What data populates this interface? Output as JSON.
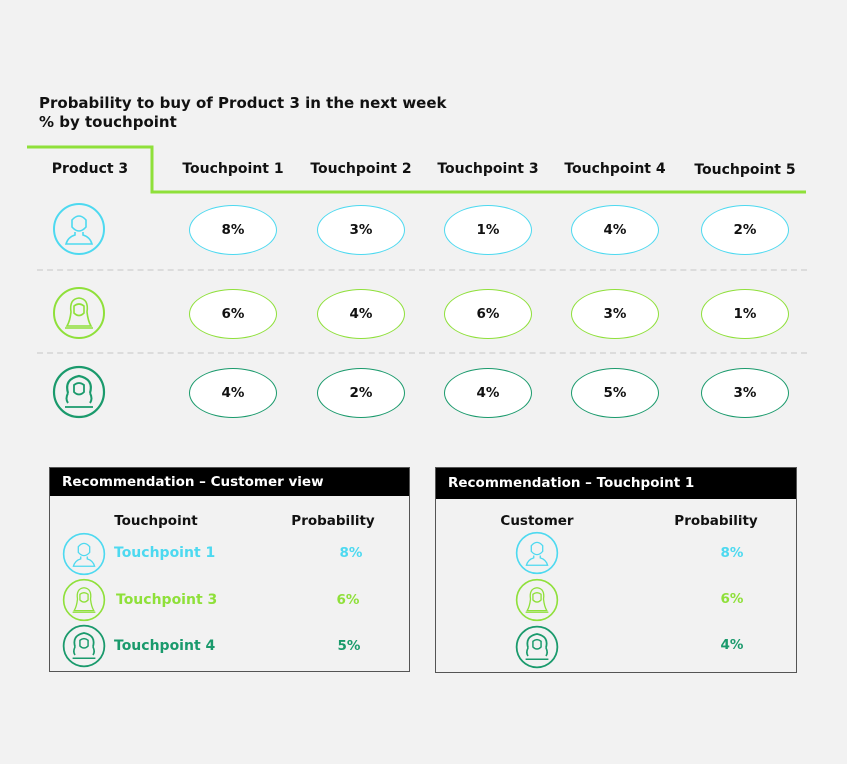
{
  "title": {
    "line1": "Probability to buy of Product 3 in the next week",
    "line2": "% by touchpoint"
  },
  "table": {
    "corner_label": "Product 3",
    "columns": [
      "Touchpoint 1",
      "Touchpoint 2",
      "Touchpoint 3",
      "Touchpoint 4",
      "Touchpoint 5"
    ],
    "rows": [
      {
        "icon": "customer-short-hair-icon",
        "color": "#4dd9f0",
        "values": [
          "8%",
          "3%",
          "1%",
          "4%",
          "2%"
        ]
      },
      {
        "icon": "customer-long-hair-icon",
        "color": "#8fe03a",
        "values": [
          "6%",
          "4%",
          "6%",
          "3%",
          "1%"
        ]
      },
      {
        "icon": "customer-curly-hair-icon",
        "color": "#1a9a6c",
        "values": [
          "4%",
          "2%",
          "4%",
          "5%",
          "3%"
        ]
      }
    ]
  },
  "colors": {
    "cyan": "#4dd9f0",
    "lime": "#8fe03a",
    "green": "#1a9a6c",
    "accent_line": "#8fe03a",
    "panel_header": "#000000"
  },
  "panel_customer": {
    "heading": "Recommendation – Customer view",
    "col1": "Touchpoint",
    "col2": "Probability",
    "items": [
      {
        "label": "Touchpoint 1",
        "value": "8%"
      },
      {
        "label": "Touchpoint 3",
        "value": "6%"
      },
      {
        "label": "Touchpoint 4",
        "value": "5%"
      }
    ]
  },
  "panel_touchpoint": {
    "heading": "Recommendation – Touchpoint 1",
    "col1": "Customer",
    "col2": "Probability",
    "items": [
      {
        "value": "8%"
      },
      {
        "value": "6%"
      },
      {
        "value": "4%"
      }
    ]
  }
}
